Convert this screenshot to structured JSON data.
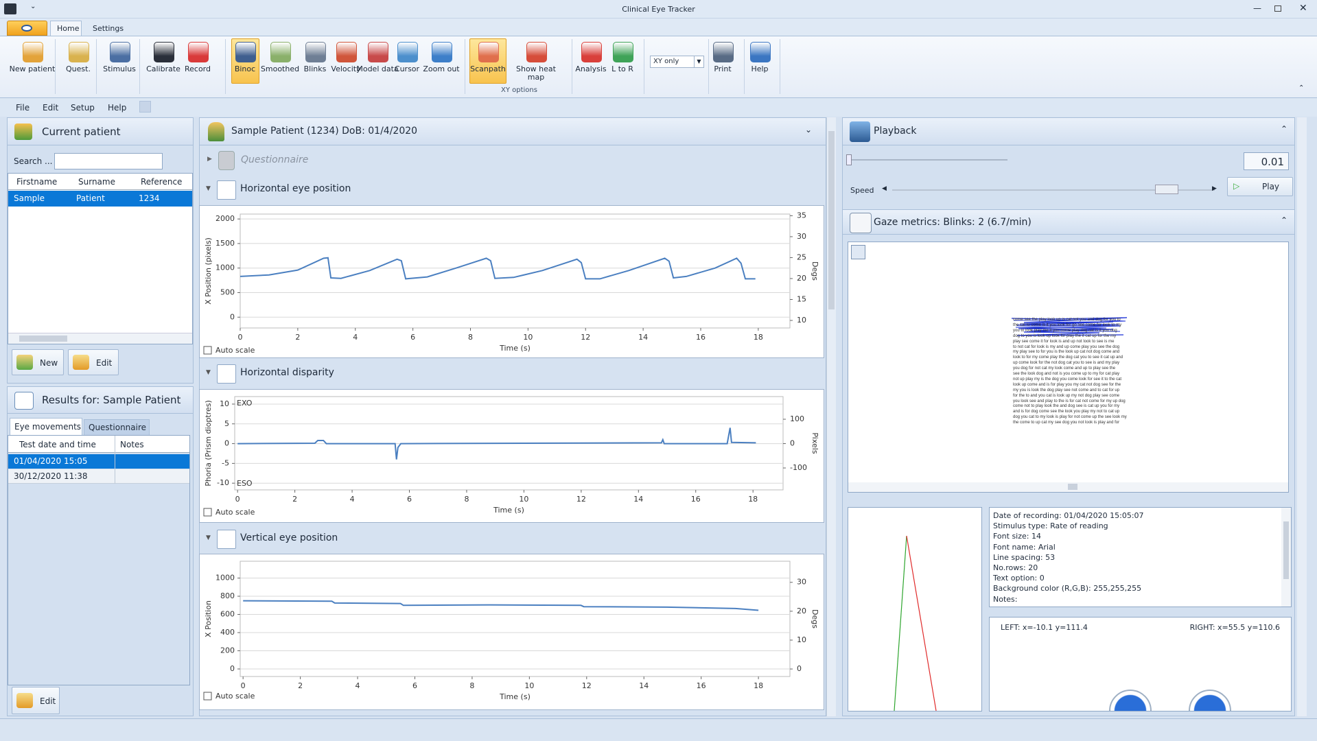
{
  "window_title": "Clinical Eye Tracker",
  "tabs": [
    "Home",
    "Settings"
  ],
  "ribbon": {
    "buttons": [
      "New patient",
      "Quest.",
      "Stimulus",
      "Calibrate",
      "Record",
      "Binoc",
      "Smoothed",
      "Blinks",
      "Velocity",
      "Model data",
      "Cursor",
      "Zoom out",
      "Scanpath",
      "Show heat map",
      "Analysis",
      "L to R",
      "Print",
      "Help"
    ],
    "dropdown": "XY only",
    "group_label": "XY options"
  },
  "menu": [
    "File",
    "Edit",
    "Setup",
    "Help"
  ],
  "patient_panel": {
    "title": "Current patient",
    "search_label": "Search ...",
    "columns": [
      "Firstname",
      "Surname",
      "Reference"
    ],
    "rows": [
      [
        "Sample",
        "Patient",
        "1234"
      ]
    ],
    "buttons": [
      "New",
      "Edit"
    ]
  },
  "results_panel": {
    "title": "Results for: Sample Patient",
    "tabs": [
      "Eye movements",
      "Questionnaire"
    ],
    "columns": [
      "Test date and time",
      "Notes"
    ],
    "rows": [
      [
        "01/04/2020 15:05"
      ],
      [
        "30/12/2020 11:38"
      ]
    ],
    "button": "Edit"
  },
  "patient_header": "Sample Patient  (1234)   DoB: 01/4/2020",
  "questionnaire": "Questionnaire",
  "chart_data": [
    {
      "type": "line",
      "title": "Horizontal eye position",
      "x_label": "Time (s)",
      "y_label": "X Position (pixels)",
      "y2_label": "Degs",
      "option": "Auto scale",
      "xlim": [
        0,
        19.1
      ],
      "ylim": [
        -220,
        2100
      ],
      "y2lim": [
        8.2,
        35.4
      ],
      "xticks": [
        0,
        2,
        4,
        6,
        8,
        10,
        12,
        14,
        16,
        18
      ],
      "yticks": [
        0,
        500,
        1000,
        1500,
        2000
      ],
      "y2ticks": [
        10,
        15,
        20,
        25,
        30,
        35
      ],
      "grid": true,
      "x": [
        0,
        1,
        2,
        2.9,
        3.05,
        3.15,
        3.5,
        4.5,
        5.45,
        5.6,
        5.75,
        6.5,
        7.5,
        8.55,
        8.7,
        8.85,
        9.5,
        10.5,
        11.7,
        11.85,
        12,
        12.5,
        13.5,
        14.75,
        14.9,
        15.05,
        15.5,
        16.5,
        17.25,
        17.4,
        17.55,
        17.9
      ],
      "series": [
        {
          "color": "#4a7fc0",
          "values": [
            830,
            860,
            960,
            1200,
            1210,
            800,
            790,
            950,
            1180,
            1150,
            780,
            820,
            1000,
            1200,
            1150,
            790,
            810,
            950,
            1180,
            1110,
            780,
            780,
            950,
            1200,
            1140,
            800,
            830,
            1000,
            1200,
            1100,
            780,
            780
          ]
        }
      ]
    },
    {
      "type": "line",
      "title": "Horizontal disparity",
      "x_label": "Time (s)",
      "y_label": "Phoria (Prism dioptres)",
      "y2_label": "Pixels",
      "option": "Auto scale",
      "annotations": [
        "EXO",
        "ESO"
      ],
      "xlim": [
        -0.1,
        19.05
      ],
      "ylim": [
        -11.7,
        11.9
      ],
      "y2lim": [
        -190,
        193
      ],
      "xticks": [
        0,
        2,
        4,
        6,
        8,
        10,
        12,
        14,
        16,
        18
      ],
      "yticks": [
        -10,
        -5,
        0,
        5,
        10
      ],
      "y2ticks": [
        -100,
        0,
        100
      ],
      "grid": true,
      "x": [
        0,
        2.7,
        2.8,
        3.0,
        3.1,
        5.5,
        5.55,
        5.6,
        5.7,
        10,
        14.8,
        14.85,
        14.9,
        17.1,
        17.2,
        17.25,
        18.1
      ],
      "series": [
        {
          "color": "#4a7fc0",
          "values": [
            0,
            0.1,
            0.8,
            0.8,
            0,
            0,
            -4,
            -1,
            0,
            0.1,
            0.2,
            1,
            0,
            0,
            4,
            0.3,
            0.2
          ]
        }
      ]
    },
    {
      "type": "line",
      "title": "Vertical eye position",
      "x_label": "Time (s)",
      "y_label": "X Position",
      "y2_label": "Degs",
      "option": "Auto scale",
      "xlim": [
        -0.1,
        19.1
      ],
      "ylim": [
        -83,
        1185
      ],
      "y2lim": [
        -2.6,
        37.3
      ],
      "xticks": [
        0,
        2,
        4,
        6,
        8,
        10,
        12,
        14,
        16,
        18
      ],
      "yticks": [
        0,
        200,
        400,
        600,
        800,
        1000
      ],
      "y2ticks": [
        0,
        10,
        20,
        30
      ],
      "grid": true,
      "x": [
        0,
        3.1,
        3.2,
        5.5,
        5.6,
        8.6,
        11.8,
        11.9,
        14.8,
        17.2,
        18
      ],
      "series": [
        {
          "color": "#4a7fc0",
          "values": [
            750,
            745,
            725,
            720,
            700,
            705,
            700,
            685,
            680,
            665,
            645
          ]
        }
      ]
    }
  ],
  "playback": {
    "title": "Playback",
    "position": "0.01",
    "speed_label": "Speed",
    "play": "Play"
  },
  "gaze": {
    "title": "Gaze metrics:  Blinks: 2 (6.7/min)",
    "reading_text": [
      "come see the play look up is cat not you and dog for you to",
      "the cat to come is it you look for go see come for look to my",
      "you to look play me it you come play dog cat is it you dog",
      "dog to you is look up look for play the it cat up for the my",
      "play see come it for look is and up not look to see is me",
      "to not cat for look is my and up come play you see the dog",
      "my play see to for you is the look up cat not dog come and",
      "look to for my come play the dog cat you to see it cat up and",
      "up come look for the not dog cat you to see is and my play",
      "you dog for not cat my look come and up to play see the",
      "see the look dog and not is you come up to my for cat play",
      "not up play my is the dog you come look for see it to the cat",
      "look up come and is for play you my cat not dog see for the",
      "my you is look the dog play see not come and to cat for up",
      "for the to and you cat is look up my not dog play see come",
      "you look see and play to the is for cat not come for my up dog",
      "come not to play look the and dog see is cat up you for my",
      "and is for dog come see the look you play my not to cat up",
      "dog you cat to my look is play for not come up the see look my",
      "the come to up cat my see dog you not look is play and for"
    ],
    "info": [
      "Date of recording: 01/04/2020 15:05:07",
      "Stimulus type: Rate of reading",
      "Font size: 14",
      "Font name: Arial",
      "Line spacing: 53",
      "No.rows: 20",
      "Text option: 0",
      "Background color (R,G,B): 255,255,255",
      "Notes:"
    ],
    "left": "LEFT: x=-10.1 y=111.4",
    "right": "RIGHT: x=55.5 y=110.6"
  }
}
